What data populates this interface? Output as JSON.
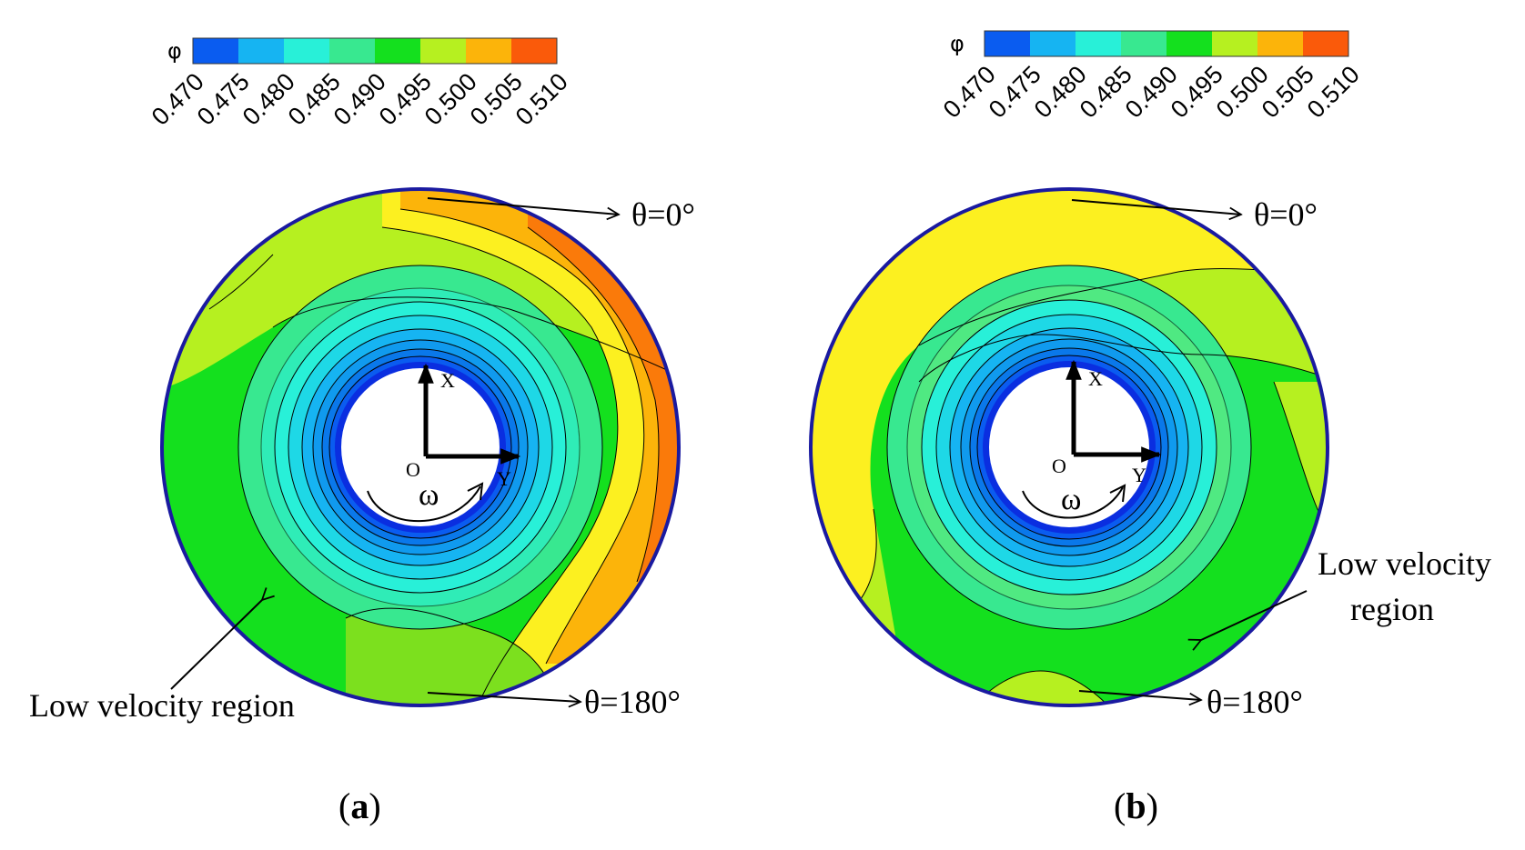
{
  "colorbar": {
    "symbol": "φ",
    "ticks": [
      "0.470",
      "0.475",
      "0.480",
      "0.485",
      "0.490",
      "0.495",
      "0.500",
      "0.505",
      "0.510"
    ],
    "colors": [
      "#0a5cf0",
      "#16b4f2",
      "#28f0d8",
      "#38e890",
      "#14e01e",
      "#b6f020",
      "#fcb40a",
      "#fa5a0a"
    ]
  },
  "panels": [
    {
      "caption_open": "(",
      "caption_letter": "a",
      "caption_close": ")",
      "theta_top": "θ=0°",
      "theta_bottom": "θ=180°",
      "low_velocity": "Low velocity region",
      "axis_x": "X",
      "axis_y": "Y",
      "origin": "O",
      "omega": "ω"
    },
    {
      "caption_open": "(",
      "caption_letter": "b",
      "caption_close": ")",
      "theta_top": "θ=0°",
      "theta_bottom": "θ=180°",
      "low_velocity_line1": "Low velocity",
      "low_velocity_line2": "region",
      "axis_x": "X",
      "axis_y": "Y",
      "origin": "O",
      "omega": "ω"
    }
  ]
}
